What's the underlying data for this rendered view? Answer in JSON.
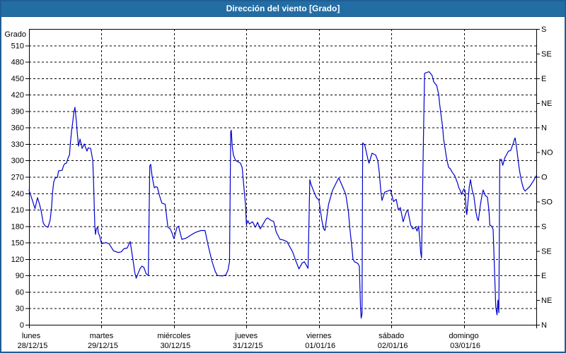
{
  "window": {
    "title": "Dirección del viento [Grado]"
  },
  "colors": {
    "titlebar_bg": "#236DA5",
    "window_border": "#1F5E94",
    "title_text": "#FFFFFF",
    "plot_bg": "#FFFFFF",
    "grid": "#000000",
    "axis": "#000000",
    "tick_text": "#000000",
    "series_line": "#0000CD"
  },
  "chart_data": {
    "type": "line",
    "title": "Dirección del viento [Grado]",
    "ylabel_left": "Grado",
    "grid": "dashed",
    "legend": "none",
    "y_axis_left": {
      "min": 0,
      "max": 540,
      "tick_step": 30,
      "first_label": 0,
      "last_label": 510,
      "tick_labels": [
        "0",
        "30",
        "60",
        "90",
        "120",
        "150",
        "180",
        "210",
        "240",
        "270",
        "300",
        "330",
        "360",
        "390",
        "420",
        "450",
        "480",
        "510"
      ]
    },
    "y_axis_right": {
      "tick_step_degrees": 45,
      "labels_bottom_to_top": [
        "N",
        "NE",
        "E",
        "SE",
        "S",
        "SO",
        "O",
        "NO",
        "N",
        "NE",
        "E",
        "SE",
        "S"
      ]
    },
    "x_axis": {
      "unit": "days",
      "hours_total": 168,
      "days": [
        {
          "name": "lunes",
          "date": "28/12/15"
        },
        {
          "name": "martes",
          "date": "29/12/15"
        },
        {
          "name": "miércoles",
          "date": "30/12/15"
        },
        {
          "name": "jueves",
          "date": "31/12/15"
        },
        {
          "name": "viernes",
          "date": "01/01/16"
        },
        {
          "name": "sábado",
          "date": "02/01/16"
        },
        {
          "name": "domingo",
          "date": "03/01/16"
        }
      ]
    },
    "series": [
      {
        "name": "Dirección del viento",
        "color": "#0000CD",
        "points": [
          [
            0,
            246
          ],
          [
            1,
            229
          ],
          [
            2,
            212
          ],
          [
            2.8,
            232
          ],
          [
            3.5,
            220
          ],
          [
            4,
            208
          ],
          [
            4.7,
            186
          ],
          [
            5.4,
            180
          ],
          [
            6.3,
            178
          ],
          [
            7,
            191
          ],
          [
            7.5,
            216
          ],
          [
            7.8,
            242
          ],
          [
            8.2,
            261
          ],
          [
            8.7,
            268
          ],
          [
            9.4,
            269
          ],
          [
            9.8,
            281
          ],
          [
            11,
            282
          ],
          [
            11.4,
            290
          ],
          [
            11.8,
            294
          ],
          [
            12.4,
            295
          ],
          [
            12.9,
            304
          ],
          [
            13.4,
            310
          ],
          [
            13.7,
            332
          ],
          [
            14.1,
            354
          ],
          [
            14.5,
            371
          ],
          [
            14.8,
            386
          ],
          [
            15.2,
            397
          ],
          [
            15.7,
            371
          ],
          [
            16,
            349
          ],
          [
            16.4,
            326
          ],
          [
            16.9,
            339
          ],
          [
            17.6,
            322
          ],
          [
            18.3,
            330
          ],
          [
            19.2,
            317
          ],
          [
            19.6,
            323
          ],
          [
            20.4,
            322
          ],
          [
            21.1,
            300
          ],
          [
            21.4,
            259
          ],
          [
            21.6,
            216
          ],
          [
            21.8,
            182
          ],
          [
            22,
            165
          ],
          [
            22.3,
            175
          ],
          [
            22.7,
            178
          ],
          [
            23,
            167
          ],
          [
            23.4,
            162
          ],
          [
            24,
            148
          ],
          [
            25.5,
            150
          ],
          [
            26.5,
            148
          ],
          [
            28,
            135
          ],
          [
            29.5,
            132
          ],
          [
            30.5,
            133
          ],
          [
            31.5,
            139
          ],
          [
            32.5,
            140
          ],
          [
            33.5,
            152
          ],
          [
            34.4,
            120
          ],
          [
            35,
            96
          ],
          [
            35.5,
            85
          ],
          [
            36.2,
            95
          ],
          [
            36.8,
            103
          ],
          [
            37.4,
            107
          ],
          [
            38,
            105
          ],
          [
            38.8,
            93
          ],
          [
            39.5,
            90
          ],
          [
            40,
            290
          ],
          [
            40.3,
            293
          ],
          [
            40.8,
            270
          ],
          [
            41.5,
            250
          ],
          [
            42,
            252
          ],
          [
            42.5,
            251
          ],
          [
            43.2,
            236
          ],
          [
            44,
            222
          ],
          [
            45.1,
            220
          ],
          [
            46,
            178
          ],
          [
            46.8,
            175
          ],
          [
            47.4,
            167
          ],
          [
            48,
            157
          ],
          [
            49,
            178
          ],
          [
            49.5,
            180
          ],
          [
            50.6,
            156
          ],
          [
            52,
            158
          ],
          [
            54.6,
            167
          ],
          [
            55.8,
            170
          ],
          [
            57,
            172
          ],
          [
            58.3,
            172
          ],
          [
            59.4,
            143
          ],
          [
            60.6,
            116
          ],
          [
            61.7,
            97
          ],
          [
            62.4,
            90
          ],
          [
            64,
            89
          ],
          [
            65.2,
            91
          ],
          [
            65.9,
            100
          ],
          [
            66.4,
            115
          ],
          [
            66.8,
            352
          ],
          [
            67,
            355
          ],
          [
            67.3,
            326
          ],
          [
            67.7,
            310
          ],
          [
            68.4,
            300
          ],
          [
            69.4,
            297
          ],
          [
            70,
            295
          ],
          [
            70.6,
            287
          ],
          [
            71.2,
            249
          ],
          [
            71.7,
            219
          ],
          [
            72,
            183
          ],
          [
            72.5,
            190
          ],
          [
            73,
            184
          ],
          [
            74,
            188
          ],
          [
            75,
            178
          ],
          [
            75.7,
            187
          ],
          [
            76.6,
            175
          ],
          [
            78.5,
            193
          ],
          [
            79,
            195
          ],
          [
            80.3,
            190
          ],
          [
            81,
            189
          ],
          [
            81.9,
            169
          ],
          [
            83.1,
            156
          ],
          [
            84,
            155
          ],
          [
            85.4,
            152
          ],
          [
            87.3,
            133
          ],
          [
            88.4,
            116
          ],
          [
            89.4,
            102
          ],
          [
            90.5,
            113
          ],
          [
            91.2,
            115
          ],
          [
            92.4,
            103
          ],
          [
            93,
            265
          ],
          [
            93.3,
            258
          ],
          [
            94.2,
            245
          ],
          [
            95.2,
            232
          ],
          [
            96,
            228
          ],
          [
            96.3,
            216
          ],
          [
            97,
            190
          ],
          [
            97.6,
            175
          ],
          [
            98,
            172
          ],
          [
            99.2,
            220
          ],
          [
            100.5,
            245
          ],
          [
            102,
            262
          ],
          [
            102.6,
            268
          ],
          [
            104,
            250
          ],
          [
            104.9,
            238
          ],
          [
            105.8,
            206
          ],
          [
            106.2,
            180
          ],
          [
            106.6,
            158
          ],
          [
            107,
            137
          ],
          [
            107.3,
            120
          ],
          [
            107.8,
            115
          ],
          [
            108.9,
            112
          ],
          [
            109.4,
            107
          ],
          [
            109.8,
            30
          ],
          [
            110,
            12
          ],
          [
            110.3,
            20
          ],
          [
            110.5,
            332
          ],
          [
            111.2,
            328
          ],
          [
            112.4,
            298
          ],
          [
            112.6,
            295
          ],
          [
            113.6,
            313
          ],
          [
            114.8,
            310
          ],
          [
            115.5,
            300
          ],
          [
            116,
            278
          ],
          [
            116.5,
            245
          ],
          [
            116.9,
            227
          ],
          [
            117.8,
            242
          ],
          [
            119.2,
            245
          ],
          [
            119.7,
            246
          ],
          [
            120,
            241
          ],
          [
            120.7,
            225
          ],
          [
            121.6,
            229
          ],
          [
            122.3,
            210
          ],
          [
            123,
            214
          ],
          [
            123.9,
            188
          ],
          [
            125,
            207
          ],
          [
            125.4,
            210
          ],
          [
            126.4,
            182
          ],
          [
            127.1,
            175
          ],
          [
            128,
            178
          ],
          [
            128.5,
            171
          ],
          [
            129,
            180
          ],
          [
            129.4,
            156
          ],
          [
            129.7,
            133
          ],
          [
            130,
            122
          ],
          [
            130.5,
            300
          ],
          [
            131,
            459
          ],
          [
            131.5,
            460
          ],
          [
            132.5,
            462
          ],
          [
            133.5,
            455
          ],
          [
            134,
            444
          ],
          [
            134.5,
            440
          ],
          [
            135,
            437
          ],
          [
            135.7,
            420
          ],
          [
            136,
            403
          ],
          [
            136.5,
            381
          ],
          [
            137,
            360
          ],
          [
            137.3,
            339
          ],
          [
            137.8,
            322
          ],
          [
            138.2,
            307
          ],
          [
            138.6,
            296
          ],
          [
            139,
            287
          ],
          [
            139.5,
            285
          ],
          [
            140.2,
            278
          ],
          [
            141,
            272
          ],
          [
            141.9,
            259
          ],
          [
            142.3,
            251
          ],
          [
            142.8,
            245
          ],
          [
            143.2,
            238
          ],
          [
            144,
            248
          ],
          [
            144.4,
            245
          ],
          [
            144.8,
            206
          ],
          [
            145,
            201
          ],
          [
            145.8,
            252
          ],
          [
            146.2,
            265
          ],
          [
            146.8,
            245
          ],
          [
            147.3,
            236
          ],
          [
            148,
            206
          ],
          [
            148.5,
            193
          ],
          [
            148.8,
            190
          ],
          [
            149.5,
            219
          ],
          [
            150,
            236
          ],
          [
            150.4,
            246
          ],
          [
            151.1,
            236
          ],
          [
            151.8,
            233
          ],
          [
            152.3,
            210
          ],
          [
            152.6,
            182
          ],
          [
            153.2,
            180
          ],
          [
            153.7,
            174
          ],
          [
            154.4,
            60
          ],
          [
            154.6,
            32
          ],
          [
            155,
            18
          ],
          [
            155.3,
            45
          ],
          [
            155.6,
            22
          ],
          [
            155.9,
            302
          ],
          [
            156.4,
            302
          ],
          [
            156.9,
            291
          ],
          [
            157.6,
            305
          ],
          [
            158.1,
            310
          ],
          [
            158.8,
            317
          ],
          [
            159.5,
            318
          ],
          [
            160.3,
            330
          ],
          [
            160.8,
            339
          ],
          [
            161,
            341
          ],
          [
            161.5,
            322
          ],
          [
            162,
            300
          ],
          [
            162.4,
            283
          ],
          [
            162.9,
            268
          ],
          [
            163.3,
            258
          ],
          [
            163.8,
            248
          ],
          [
            164.3,
            244
          ],
          [
            165,
            248
          ],
          [
            165.8,
            252
          ],
          [
            166.5,
            258
          ],
          [
            167.2,
            264
          ],
          [
            168,
            272
          ]
        ]
      }
    ]
  }
}
